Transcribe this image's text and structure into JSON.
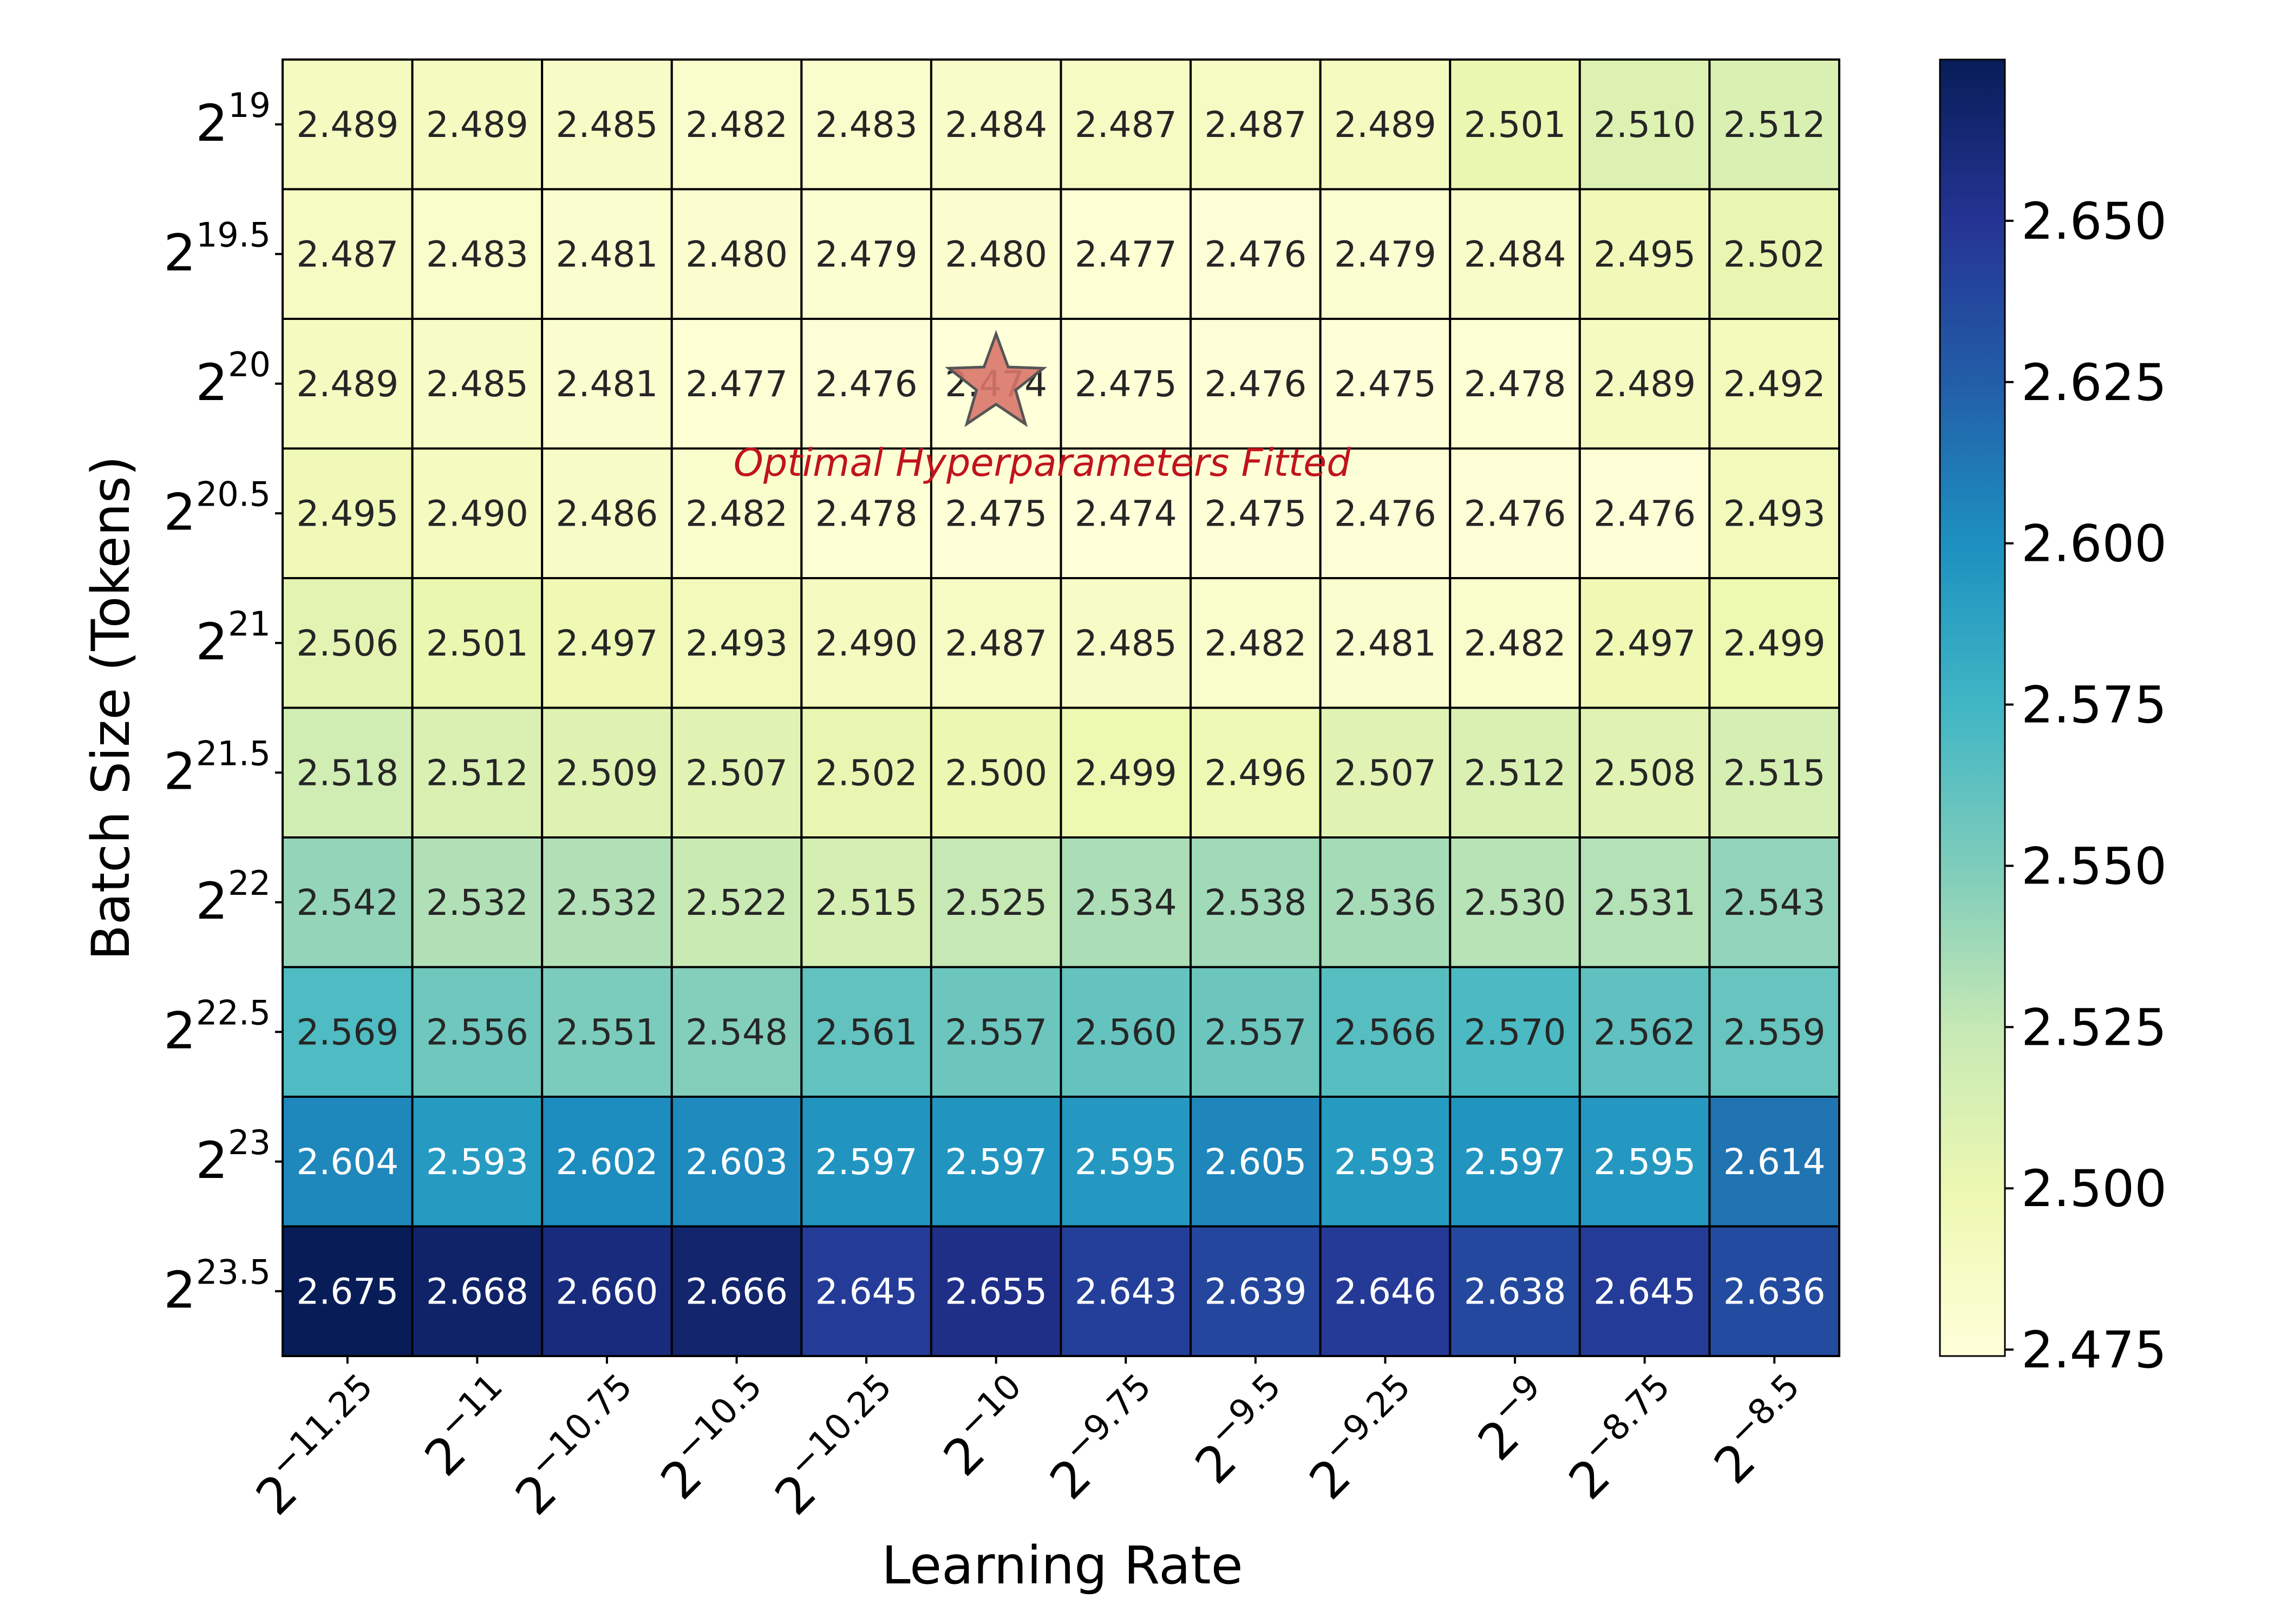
{
  "chart_data": {
    "type": "heatmap",
    "xlabel": "Learning Rate",
    "ylabel": "Batch Size (Tokens)",
    "x_tick_base": "2",
    "x_exponents": [
      "−11.25",
      "−11",
      "−10.75",
      "−10.5",
      "−10.25",
      "−10",
      "−9.75",
      "−9.5",
      "−9.25",
      "−9",
      "−8.75",
      "−8.5"
    ],
    "y_tick_base": "2",
    "y_exponents": [
      "19",
      "19.5",
      "20",
      "20.5",
      "21",
      "21.5",
      "22",
      "22.5",
      "23",
      "23.5"
    ],
    "values": [
      [
        2.489,
        2.489,
        2.485,
        2.482,
        2.483,
        2.484,
        2.487,
        2.487,
        2.489,
        2.501,
        2.51,
        2.512
      ],
      [
        2.487,
        2.483,
        2.481,
        2.48,
        2.479,
        2.48,
        2.477,
        2.476,
        2.479,
        2.484,
        2.495,
        2.502
      ],
      [
        2.489,
        2.485,
        2.481,
        2.477,
        2.476,
        2.474,
        2.475,
        2.476,
        2.475,
        2.478,
        2.489,
        2.492
      ],
      [
        2.495,
        2.49,
        2.486,
        2.482,
        2.478,
        2.475,
        2.474,
        2.475,
        2.476,
        2.476,
        2.476,
        2.493
      ],
      [
        2.506,
        2.501,
        2.497,
        2.493,
        2.49,
        2.487,
        2.485,
        2.482,
        2.481,
        2.482,
        2.497,
        2.499
      ],
      [
        2.518,
        2.512,
        2.509,
        2.507,
        2.502,
        2.5,
        2.499,
        2.496,
        2.507,
        2.512,
        2.508,
        2.515
      ],
      [
        2.542,
        2.532,
        2.532,
        2.522,
        2.515,
        2.525,
        2.534,
        2.538,
        2.536,
        2.53,
        2.531,
        2.543
      ],
      [
        2.569,
        2.556,
        2.551,
        2.548,
        2.561,
        2.557,
        2.56,
        2.557,
        2.566,
        2.57,
        2.562,
        2.559
      ],
      [
        2.604,
        2.593,
        2.602,
        2.603,
        2.597,
        2.597,
        2.595,
        2.605,
        2.593,
        2.597,
        2.595,
        2.614
      ],
      [
        2.675,
        2.668,
        2.66,
        2.666,
        2.645,
        2.655,
        2.643,
        2.639,
        2.646,
        2.638,
        2.645,
        2.636
      ]
    ],
    "colormap": "YlGnBu",
    "colorbar": {
      "range": [
        2.474,
        2.675
      ],
      "ticks": [
        "2.475",
        "2.500",
        "2.525",
        "2.550",
        "2.575",
        "2.600",
        "2.625",
        "2.650"
      ]
    },
    "marker": {
      "shape": "star",
      "row": 2,
      "col": 5,
      "color": "#d9776b",
      "label": "Optimal Hyperparameters Fitted",
      "label_color": "#c0141c"
    }
  }
}
